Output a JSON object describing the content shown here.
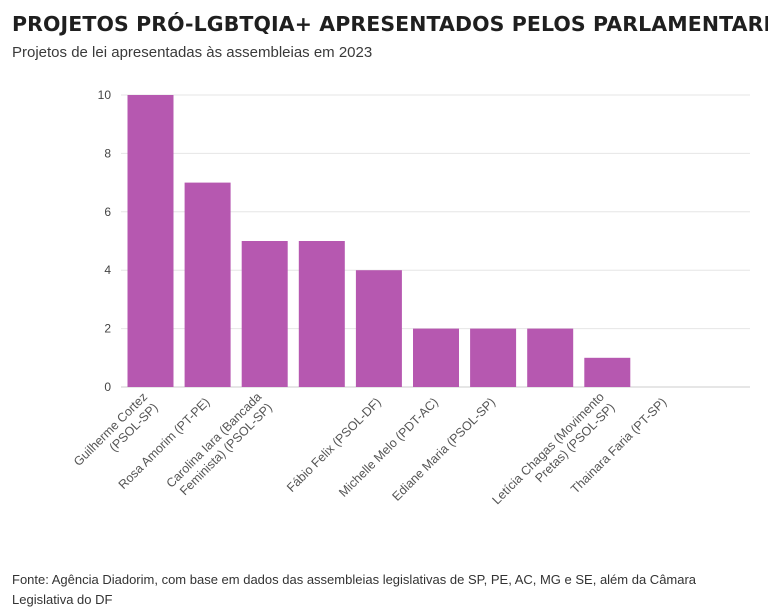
{
  "header": {
    "title": "PROJETOS PRÓ-LGBTQIA+ APRESENTADOS PELOS PARLAMENTARES",
    "subtitle": "Projetos de lei apresentadas às assembleias em 2023"
  },
  "footer": {
    "source": "Fonte: Agência Diadorim, com base em dados das assembleias legislativas de SP, PE, AC, MG e SE, além da Câmara Legislativa do DF"
  },
  "colors": {
    "bar": "#b658b0",
    "grid": "#e6e6e6",
    "axis": "#cccccc"
  },
  "chart_data": {
    "type": "bar",
    "categories": [
      [
        "Guilherme Cortez",
        "(PSOL-SP)"
      ],
      [
        "Rosa Amorim (PT-PE)"
      ],
      [
        "Carolina Iara (Bancada",
        "Feminista) (PSOL-SP)"
      ],
      [
        "Fábio Felix (PSOL-DF)"
      ],
      [
        "Michelle Melo (PDT-AC)"
      ],
      [
        "Ediane Maria (PSOL-SP)"
      ],
      [
        "Letícia Chagas (Movimento",
        "Pretas) (PSOL-SP)"
      ],
      [
        "Thainara Faria (PT-SP)"
      ]
    ],
    "bars": [
      {
        "category_index": 0,
        "value": 10
      },
      {
        "category_index": 1,
        "value": 7
      },
      {
        "category_index": 2,
        "value": 5
      },
      {
        "category_index": 2,
        "value": 5
      },
      {
        "category_index": 3,
        "value": 4
      },
      {
        "category_index": 4,
        "value": 2
      },
      {
        "category_index": 5,
        "value": 2
      },
      {
        "category_index": 5,
        "value": 2
      },
      {
        "category_index": 6,
        "value": 1
      },
      {
        "category_index": 7,
        "value": 0
      }
    ],
    "yticks": [
      0,
      2,
      4,
      6,
      8,
      10
    ],
    "ylim": [
      0,
      10
    ],
    "grid": true,
    "xlabel": "",
    "ylabel": ""
  }
}
